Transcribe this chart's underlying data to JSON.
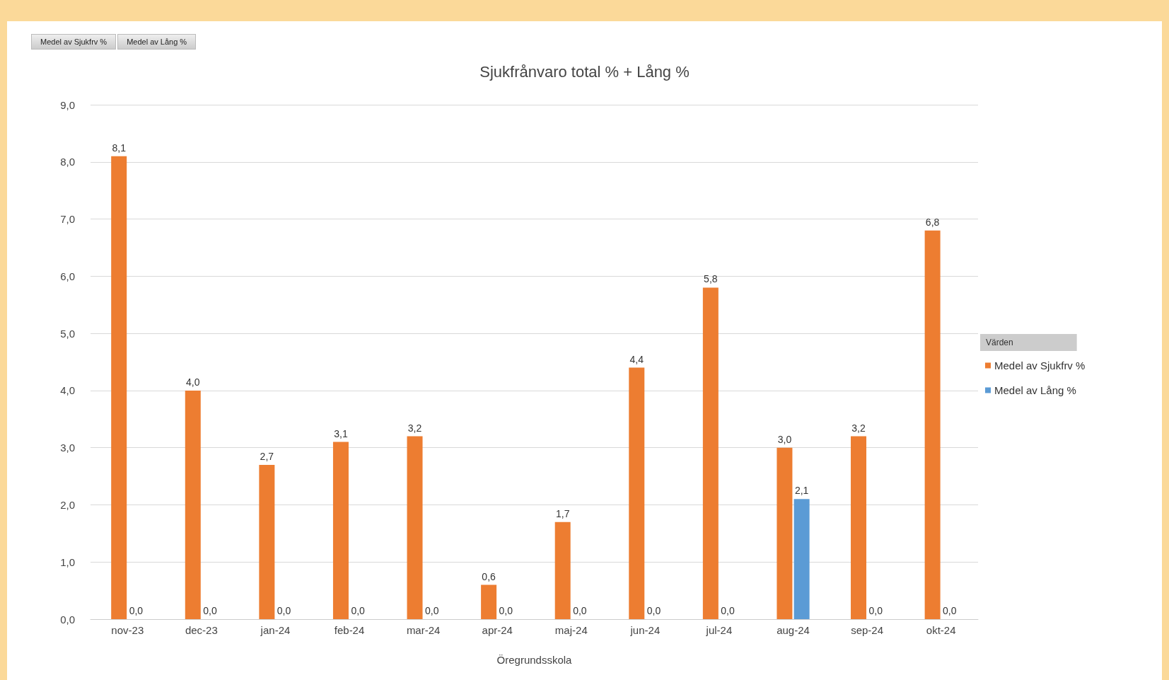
{
  "chart_data": {
    "type": "bar",
    "title": "Sjukfrånvaro total % + Lång %",
    "xlabel": "Öregrundsskola",
    "legend_title": "Värden",
    "legend": "right",
    "grid": "y",
    "annotations": [
      "Medel av Sjukfrv %",
      "Medel av Lång %"
    ],
    "categories": [
      "nov-23",
      "dec-23",
      "jan-24",
      "feb-24",
      "mar-24",
      "apr-24",
      "maj-24",
      "jun-24",
      "jul-24",
      "aug-24",
      "sep-24",
      "okt-24"
    ],
    "ylim": [
      0,
      9
    ],
    "yticks": [
      {
        "value": 0,
        "label": "0,0"
      },
      {
        "value": 1,
        "label": "1,0"
      },
      {
        "value": 2,
        "label": "2,0"
      },
      {
        "value": 3,
        "label": "3,0"
      },
      {
        "value": 4,
        "label": "4,0"
      },
      {
        "value": 5,
        "label": "5,0"
      },
      {
        "value": 6,
        "label": "6,0"
      },
      {
        "value": 7,
        "label": "7,0"
      },
      {
        "value": 8,
        "label": "8,0"
      },
      {
        "value": 9,
        "label": "9,0"
      }
    ],
    "series": [
      {
        "name": "Medel av Sjukfrv %",
        "color": "#ed7d31",
        "values": [
          8.1,
          4.0,
          2.7,
          3.1,
          3.2,
          0.6,
          1.7,
          4.4,
          5.8,
          3.0,
          3.2,
          6.8
        ],
        "value_labels": [
          "8,1",
          "4,0",
          "2,7",
          "3,1",
          "3,2",
          "0,6",
          "1,7",
          "4,4",
          "5,8",
          "3,0",
          "3,2",
          "6,8"
        ]
      },
      {
        "name": "Medel av Lång %",
        "color": "#5b9bd5",
        "values": [
          0,
          0,
          0,
          0,
          0,
          0,
          0,
          0,
          0,
          2.1,
          0,
          0
        ],
        "value_labels": [
          "0,0",
          "0,0",
          "0,0",
          "0,0",
          "0,0",
          "0,0",
          "0,0",
          "0,0",
          "0,0",
          "2,1",
          "0,0",
          "0,0"
        ]
      }
    ]
  }
}
